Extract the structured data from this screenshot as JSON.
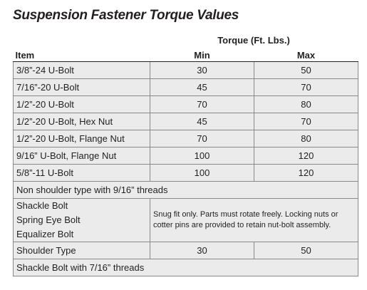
{
  "title": "Suspension Fastener Torque Values",
  "table": {
    "group_header": "Torque (Ft. Lbs.)",
    "columns": [
      "Item",
      "Min",
      "Max"
    ],
    "rows": [
      [
        "3/8”-24 U-Bolt",
        30,
        50
      ],
      [
        "7/16”-20 U-Bolt",
        45,
        70
      ],
      [
        "1/2”-20 U-Bolt",
        70,
        80
      ],
      [
        "1/2”-20 U-Bolt, Hex Nut",
        45,
        70
      ],
      [
        "1/2”-20 U-Bolt, Flange Nut",
        70,
        80
      ],
      [
        "9/16” U-Bolt, Flange Nut",
        100,
        120
      ],
      [
        "5/8”-11 U-Bolt",
        100,
        120
      ],
      [
        "Non shoulder type with 9/16” threads"
      ],
      [
        [
          "Shackle Bolt",
          "Spring Eye Bolt",
          "Equalizer Bolt"
        ],
        "Snug fit only. Parts must rotate freely. Locking nuts or cotter pins are provided to retain nut-bolt assembly."
      ],
      [
        "Shoulder Type",
        30,
        50
      ],
      [
        "Shackle Bolt with 7/16” threads"
      ]
    ]
  }
}
